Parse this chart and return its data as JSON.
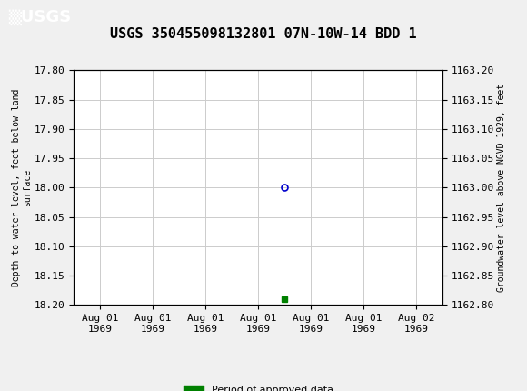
{
  "title": "USGS 350455098132801 07N-10W-14 BDD 1",
  "title_fontsize": 11,
  "header_color": "#1a6b3c",
  "bg_color": "#f0f0f0",
  "plot_bg_color": "#ffffff",
  "grid_color": "#cccccc",
  "ylabel_left": "Depth to water level, feet below land\nsurface",
  "ylabel_right": "Groundwater level above NGVD 1929, feet",
  "ylim_left_top": 17.8,
  "ylim_left_bottom": 18.2,
  "ylim_right_top": 1163.2,
  "ylim_right_bottom": 1162.8,
  "yticks_left": [
    17.8,
    17.85,
    17.9,
    17.95,
    18.0,
    18.05,
    18.1,
    18.15,
    18.2
  ],
  "yticks_right": [
    1163.2,
    1163.15,
    1163.1,
    1163.05,
    1163.0,
    1162.95,
    1162.9,
    1162.85,
    1162.8
  ],
  "data_point_x": 3.5,
  "data_point_y": 18.0,
  "data_point_color": "#0000cc",
  "data_point_markersize": 5,
  "small_marker_x": 3.5,
  "small_marker_y": 18.19,
  "small_marker_color": "#008000",
  "small_marker_size": 4,
  "x_tick_labels": [
    "Aug 01\n1969",
    "Aug 01\n1969",
    "Aug 01\n1969",
    "Aug 01\n1969",
    "Aug 01\n1969",
    "Aug 01\n1969",
    "Aug 02\n1969"
  ],
  "x_positions": [
    0,
    1,
    2,
    3,
    4,
    5,
    6
  ],
  "xlim": [
    -0.5,
    6.5
  ],
  "legend_label": "Period of approved data",
  "legend_color": "#008000",
  "font_family": "monospace",
  "tick_fontsize": 8,
  "ylabel_fontsize": 7
}
